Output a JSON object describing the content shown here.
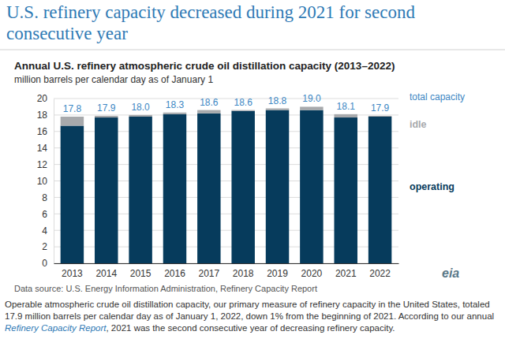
{
  "headline": "U.S. refinery capacity decreased during 2021 for second consecutive year",
  "chart_data": {
    "type": "bar",
    "stacked": true,
    "grid": true,
    "title": "Annual U.S. refinery atmospheric crude oil distillation capacity (2013–2022)",
    "subtitle": "million barrels per calendar day as of January 1",
    "categories": [
      "2013",
      "2014",
      "2015",
      "2016",
      "2017",
      "2018",
      "2019",
      "2020",
      "2021",
      "2022"
    ],
    "series": [
      {
        "name": "operating",
        "color": "#063b5c",
        "values": [
          16.7,
          17.7,
          17.8,
          18.1,
          18.2,
          18.5,
          18.6,
          18.6,
          17.7,
          17.8
        ]
      },
      {
        "name": "idle",
        "color": "#a7a9ac",
        "values": [
          1.1,
          0.2,
          0.2,
          0.2,
          0.4,
          0.1,
          0.2,
          0.4,
          0.4,
          0.1
        ]
      }
    ],
    "totals": {
      "name": "total capacity",
      "color": "#3d87c4",
      "values": [
        17.8,
        17.9,
        18.0,
        18.3,
        18.6,
        18.6,
        18.8,
        19.0,
        18.1,
        17.9
      ],
      "value_labels": [
        "17.8",
        "17.9",
        "18.0",
        "18.3",
        "18.6",
        "18.6",
        "18.8",
        "19.0",
        "18.1",
        "17.9"
      ]
    },
    "ylim": [
      0,
      20
    ],
    "yticks": [
      0,
      2,
      4,
      6,
      8,
      10,
      12,
      14,
      16,
      18,
      20
    ],
    "source": "Data source: U.S. Energy Information Administration, Refinery Capacity Report"
  },
  "logo": "eia",
  "footnote": [
    "Operable atmospheric crude oil distillation capacity, our primary measure of refinery capacity in the United States, totaled 17.9 million barrels per calendar day as of January 1, 2022, down 1% from the beginning of 2021. According to our annual ",
    "Refinery Capacity Report",
    ", 2021 was the second consecutive year of decreasing refinery capacity."
  ]
}
